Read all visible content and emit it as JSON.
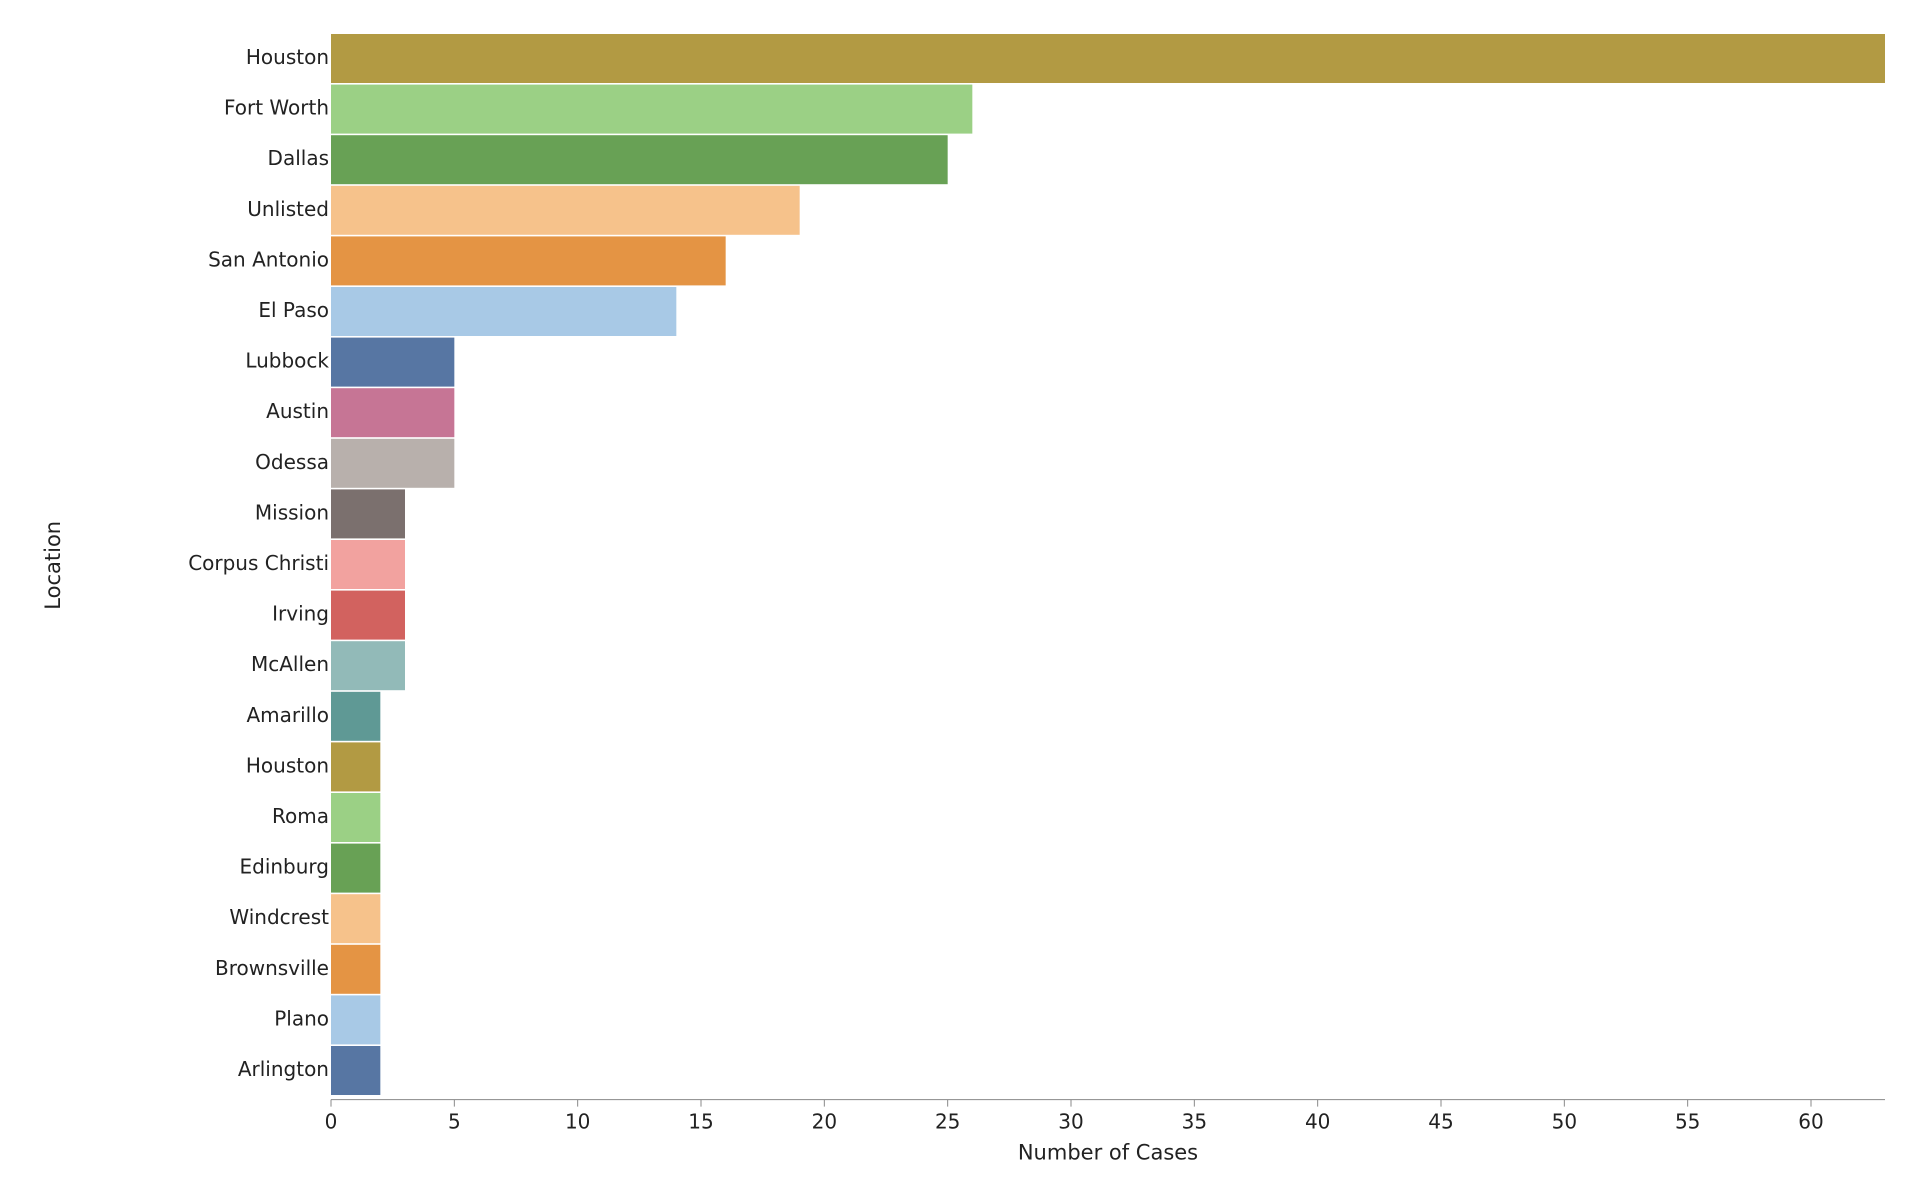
{
  "chart_data": {
    "type": "bar",
    "orientation": "horizontal",
    "xlabel": "Number of Cases",
    "ylabel": "Location",
    "xlim": [
      0,
      63
    ],
    "x_ticks": [
      0,
      5,
      10,
      15,
      20,
      25,
      30,
      35,
      40,
      45,
      50,
      55,
      60
    ],
    "grid": false,
    "legend": "none",
    "categories": [
      "Houston",
      "Fort Worth",
      "Dallas",
      "Unlisted",
      "San Antonio",
      "El Paso",
      "Lubbock",
      "Austin",
      "Odessa",
      "Mission",
      "Corpus Christi",
      "Irving",
      "McAllen",
      "Amarillo",
      "Houston",
      "Roma",
      "Edinburg",
      "Windcrest",
      "Brownsville",
      "Plano",
      "Arlington"
    ],
    "values": [
      63,
      26,
      25,
      19,
      16,
      14,
      5,
      5,
      5,
      3,
      3,
      3,
      3,
      2,
      2,
      2,
      2,
      2,
      2,
      2,
      2
    ],
    "colors": [
      "#b29a43",
      "#9bd085",
      "#68a155",
      "#f6c28b",
      "#e49444",
      "#a8c9e6",
      "#5776a3",
      "#c67595",
      "#b8b0ac",
      "#7b706e",
      "#f2a29f",
      "#d2625f",
      "#92bab8",
      "#5f9995",
      "#b29a43",
      "#9bd085",
      "#68a155",
      "#f6c28b",
      "#e49444",
      "#a8c9e6",
      "#5776a3"
    ]
  }
}
